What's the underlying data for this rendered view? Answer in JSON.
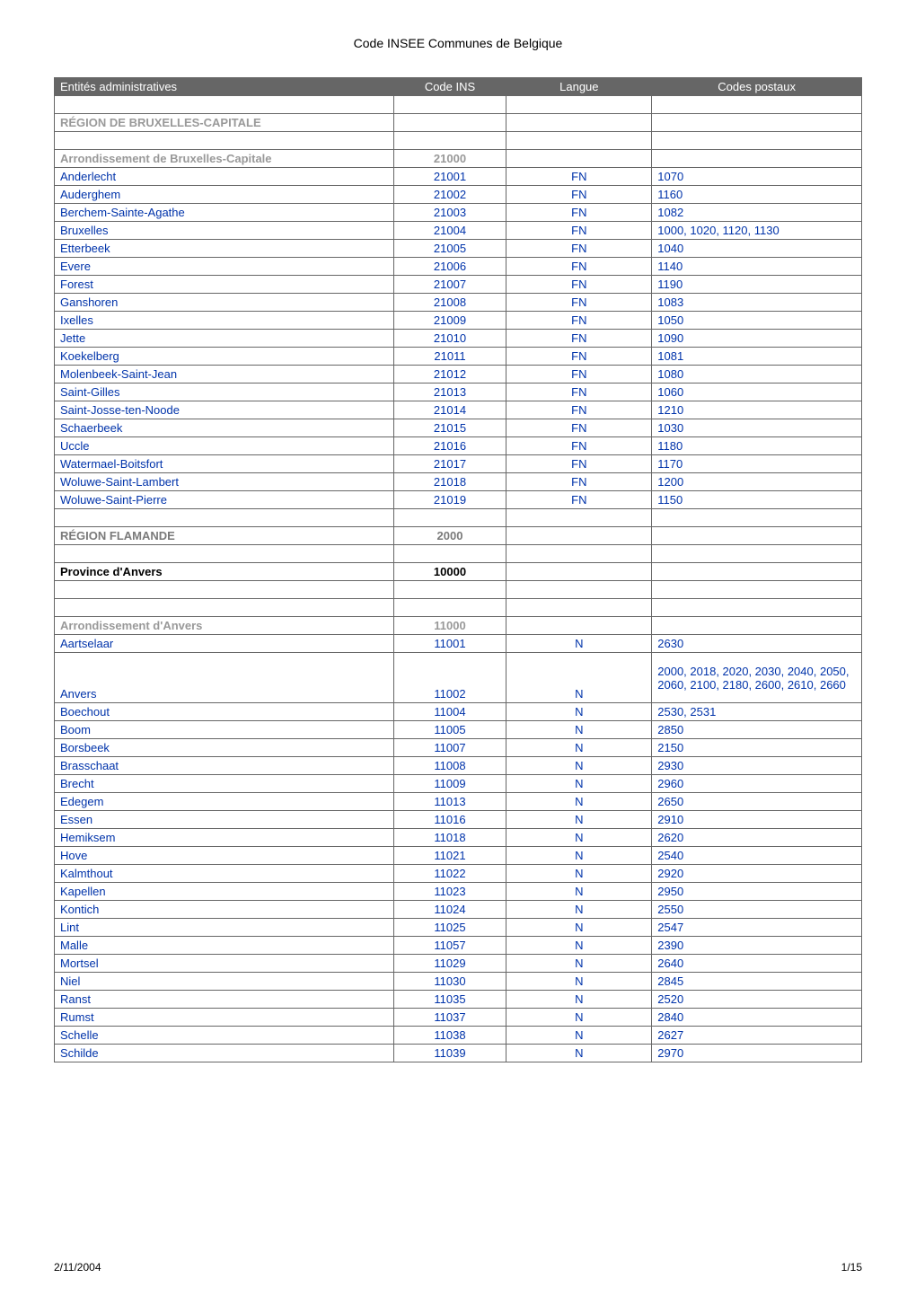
{
  "page_title": "Code INSEE Communes de Belgique",
  "footer": {
    "date": "2/11/2004",
    "pagination": "1/15"
  },
  "table": {
    "headers": {
      "entity": "Entités administratives",
      "code": "Code INS",
      "lang": "Langue",
      "postal": "Codes postaux"
    },
    "colors": {
      "header_bg": "#666666",
      "header_fg": "#ffffff",
      "blue": "#0033aa",
      "grey_bold": "#999999",
      "grey_bold_dark": "#7a7a7a",
      "border": "#666666"
    },
    "rows": [
      {
        "type": "empty"
      },
      {
        "type": "section_grey",
        "entity": "RÉGION DE BRUXELLES-CAPITALE"
      },
      {
        "type": "empty"
      },
      {
        "type": "section_grey",
        "entity": "Arrondissement de Bruxelles-Capitale",
        "code": "21000"
      },
      {
        "type": "blue",
        "entity": "Anderlecht",
        "code": "21001",
        "lang": "FN",
        "postal": "1070"
      },
      {
        "type": "blue",
        "entity": "Auderghem",
        "code": "21002",
        "lang": "FN",
        "postal": "1160"
      },
      {
        "type": "blue",
        "entity": "Berchem-Sainte-Agathe",
        "code": "21003",
        "lang": "FN",
        "postal": "1082"
      },
      {
        "type": "blue",
        "entity": "Bruxelles",
        "code": "21004",
        "lang": "FN",
        "postal": "1000, 1020, 1120, 1130"
      },
      {
        "type": "blue",
        "entity": "Etterbeek",
        "code": "21005",
        "lang": "FN",
        "postal": "1040"
      },
      {
        "type": "blue",
        "entity": "Evere",
        "code": "21006",
        "lang": "FN",
        "postal": "1140"
      },
      {
        "type": "blue",
        "entity": "Forest",
        "code": "21007",
        "lang": "FN",
        "postal": "1190"
      },
      {
        "type": "blue",
        "entity": "Ganshoren",
        "code": "21008",
        "lang": "FN",
        "postal": "1083"
      },
      {
        "type": "blue",
        "entity": "Ixelles",
        "code": "21009",
        "lang": "FN",
        "postal": "1050"
      },
      {
        "type": "blue",
        "entity": "Jette",
        "code": "21010",
        "lang": "FN",
        "postal": "1090"
      },
      {
        "type": "blue",
        "entity": "Koekelberg",
        "code": "21011",
        "lang": "FN",
        "postal": "1081"
      },
      {
        "type": "blue",
        "entity": "Molenbeek-Saint-Jean",
        "code": "21012",
        "lang": "FN",
        "postal": "1080"
      },
      {
        "type": "blue",
        "entity": "Saint-Gilles",
        "code": "21013",
        "lang": "FN",
        "postal": "1060"
      },
      {
        "type": "blue",
        "entity": "Saint-Josse-ten-Noode",
        "code": "21014",
        "lang": "FN",
        "postal": "1210"
      },
      {
        "type": "blue",
        "entity": "Schaerbeek",
        "code": "21015",
        "lang": "FN",
        "postal": "1030"
      },
      {
        "type": "blue",
        "entity": "Uccle",
        "code": "21016",
        "lang": "FN",
        "postal": "1180"
      },
      {
        "type": "blue",
        "entity": "Watermael-Boitsfort",
        "code": "21017",
        "lang": "FN",
        "postal": "1170"
      },
      {
        "type": "blue",
        "entity": "Woluwe-Saint-Lambert",
        "code": "21018",
        "lang": "FN",
        "postal": "1200"
      },
      {
        "type": "blue",
        "entity": "Woluwe-Saint-Pierre",
        "code": "21019",
        "lang": "FN",
        "postal": "1150"
      },
      {
        "type": "empty"
      },
      {
        "type": "section_grey_dark",
        "entity": "RÉGION FLAMANDE",
        "code": "2000"
      },
      {
        "type": "empty"
      },
      {
        "type": "bold_black",
        "entity": "Province d'Anvers",
        "code": "10000"
      },
      {
        "type": "empty"
      },
      {
        "type": "empty"
      },
      {
        "type": "section_grey",
        "entity": "Arrondissement d'Anvers",
        "code": "11000"
      },
      {
        "type": "blue",
        "entity": "Aartselaar",
        "code": "11001",
        "lang": "N",
        "postal": "2630"
      },
      {
        "type": "blue",
        "entity": "Anvers",
        "code": "11002",
        "lang": "N",
        "postal": "2000, 2018, 2020, 2030, 2040, 2050, 2060, 2100, 2180, 2600, 2610, 2660",
        "postal_multiline": true
      },
      {
        "type": "blue",
        "entity": "Boechout",
        "code": "11004",
        "lang": "N",
        "postal": "2530, 2531"
      },
      {
        "type": "blue",
        "entity": "Boom",
        "code": "11005",
        "lang": "N",
        "postal": "2850"
      },
      {
        "type": "blue",
        "entity": "Borsbeek",
        "code": "11007",
        "lang": "N",
        "postal": "2150"
      },
      {
        "type": "blue",
        "entity": "Brasschaat",
        "code": "11008",
        "lang": "N",
        "postal": "2930"
      },
      {
        "type": "blue",
        "entity": "Brecht",
        "code": "11009",
        "lang": "N",
        "postal": "2960"
      },
      {
        "type": "blue",
        "entity": "Edegem",
        "code": "11013",
        "lang": "N",
        "postal": "2650"
      },
      {
        "type": "blue",
        "entity": "Essen",
        "code": "11016",
        "lang": "N",
        "postal": "2910"
      },
      {
        "type": "blue",
        "entity": "Hemiksem",
        "code": "11018",
        "lang": "N",
        "postal": "2620"
      },
      {
        "type": "blue",
        "entity": "Hove",
        "code": "11021",
        "lang": "N",
        "postal": "2540"
      },
      {
        "type": "blue",
        "entity": "Kalmthout",
        "code": "11022",
        "lang": "N",
        "postal": "2920"
      },
      {
        "type": "blue",
        "entity": "Kapellen",
        "code": "11023",
        "lang": "N",
        "postal": "2950"
      },
      {
        "type": "blue",
        "entity": "Kontich",
        "code": "11024",
        "lang": "N",
        "postal": "2550"
      },
      {
        "type": "blue",
        "entity": "Lint",
        "code": "11025",
        "lang": "N",
        "postal": "2547"
      },
      {
        "type": "blue",
        "entity": "Malle",
        "code": "11057",
        "lang": "N",
        "postal": "2390"
      },
      {
        "type": "blue",
        "entity": "Mortsel",
        "code": "11029",
        "lang": "N",
        "postal": "2640"
      },
      {
        "type": "blue",
        "entity": "Niel",
        "code": "11030",
        "lang": "N",
        "postal": "2845"
      },
      {
        "type": "blue",
        "entity": "Ranst",
        "code": "11035",
        "lang": "N",
        "postal": "2520"
      },
      {
        "type": "blue",
        "entity": "Rumst",
        "code": "11037",
        "lang": "N",
        "postal": "2840"
      },
      {
        "type": "blue",
        "entity": "Schelle",
        "code": "11038",
        "lang": "N",
        "postal": "2627"
      },
      {
        "type": "blue",
        "entity": "Schilde",
        "code": "11039",
        "lang": "N",
        "postal": "2970"
      }
    ]
  }
}
